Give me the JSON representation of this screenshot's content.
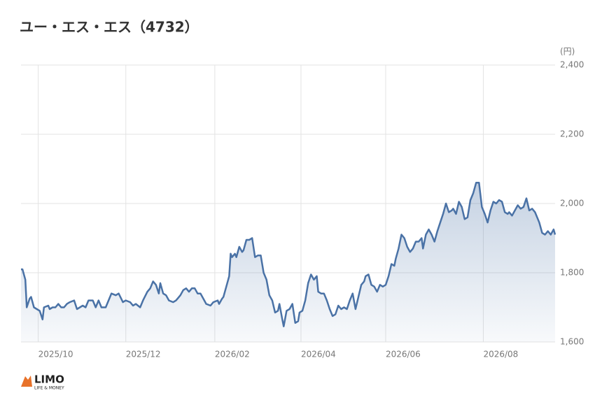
{
  "chart_data": {
    "type": "line",
    "title": "ユー・エス・エス（4732）",
    "unit_label": "(円)",
    "xlim": [
      0,
      372
    ],
    "xticks": [
      {
        "value": 12,
        "label": "2025/10"
      },
      {
        "value": 73,
        "label": "2025/12"
      },
      {
        "value": 135,
        "label": "2026/02"
      },
      {
        "value": 195,
        "label": "2026/04"
      },
      {
        "value": 254,
        "label": "2026/06"
      },
      {
        "value": 322,
        "label": "2026/08"
      }
    ],
    "ylim": [
      1600,
      2400
    ],
    "yticks": [
      {
        "value": 1600,
        "label": "1,600"
      },
      {
        "value": 1800,
        "label": "1,800"
      },
      {
        "value": 2000,
        "label": "2,000"
      },
      {
        "value": 2200,
        "label": "2,200"
      },
      {
        "value": 2400,
        "label": "2,400"
      }
    ],
    "grid": true,
    "x": [
      0,
      1,
      3,
      4,
      6,
      7,
      9,
      11,
      13,
      15,
      16,
      19,
      20,
      22,
      24,
      26,
      28,
      30,
      32,
      34,
      37,
      39,
      41,
      43,
      45,
      47,
      50,
      52,
      54,
      56,
      59,
      61,
      63,
      66,
      68,
      71,
      73,
      76,
      78,
      80,
      83,
      85,
      88,
      90,
      92,
      94,
      96,
      97,
      99,
      101,
      103,
      106,
      108,
      111,
      113,
      115,
      117,
      119,
      121,
      123,
      125,
      127,
      129,
      132,
      134,
      137,
      138,
      140,
      141,
      143,
      145,
      146,
      147,
      149,
      150,
      152,
      154,
      155,
      157,
      159,
      161,
      163,
      165,
      167,
      169,
      171,
      173,
      175,
      177,
      179,
      180,
      182,
      183,
      185,
      187,
      189,
      191,
      193,
      194,
      196,
      198,
      200,
      202,
      204,
      206,
      207,
      209,
      211,
      213,
      215,
      217,
      219,
      221,
      223,
      225,
      227,
      229,
      231,
      233,
      235,
      237,
      239,
      240,
      242,
      244,
      246,
      248,
      250,
      252,
      254,
      256,
      258,
      260,
      261,
      263,
      265,
      267,
      269,
      271,
      273,
      275,
      277,
      279,
      280,
      282,
      284,
      286,
      288,
      290,
      292,
      294,
      296,
      298,
      300,
      301,
      303,
      305,
      307,
      309,
      311,
      313,
      315,
      317,
      319,
      321,
      323,
      325,
      327,
      329,
      331,
      333,
      335,
      337,
      339,
      340,
      342,
      344,
      346,
      348,
      350,
      352,
      354,
      356,
      358,
      360,
      361,
      363,
      365,
      367,
      369,
      371,
      372
    ],
    "series": [
      {
        "name": "ユー・エス・エス",
        "color": "#4a72a6",
        "values": [
          1810,
          1810,
          1780,
          1700,
          1725,
          1730,
          1700,
          1695,
          1690,
          1665,
          1700,
          1705,
          1695,
          1700,
          1700,
          1710,
          1700,
          1700,
          1710,
          1715,
          1720,
          1695,
          1700,
          1705,
          1700,
          1720,
          1720,
          1700,
          1720,
          1700,
          1700,
          1720,
          1740,
          1735,
          1740,
          1715,
          1720,
          1715,
          1705,
          1710,
          1700,
          1720,
          1745,
          1755,
          1775,
          1765,
          1740,
          1770,
          1740,
          1735,
          1720,
          1715,
          1720,
          1735,
          1750,
          1755,
          1745,
          1755,
          1755,
          1740,
          1740,
          1725,
          1710,
          1705,
          1715,
          1720,
          1710,
          1725,
          1730,
          1760,
          1790,
          1855,
          1845,
          1855,
          1845,
          1875,
          1860,
          1865,
          1895,
          1895,
          1900,
          1845,
          1850,
          1850,
          1800,
          1780,
          1735,
          1720,
          1685,
          1690,
          1710,
          1665,
          1645,
          1690,
          1695,
          1710,
          1655,
          1660,
          1685,
          1690,
          1720,
          1770,
          1795,
          1780,
          1790,
          1745,
          1740,
          1740,
          1720,
          1695,
          1675,
          1680,
          1705,
          1695,
          1700,
          1695,
          1720,
          1740,
          1695,
          1730,
          1765,
          1775,
          1790,
          1795,
          1765,
          1760,
          1745,
          1765,
          1760,
          1765,
          1790,
          1825,
          1820,
          1840,
          1870,
          1910,
          1900,
          1875,
          1860,
          1870,
          1890,
          1890,
          1900,
          1870,
          1910,
          1925,
          1910,
          1890,
          1920,
          1945,
          1970,
          2000,
          1975,
          1980,
          1985,
          1970,
          2005,
          1990,
          1955,
          1960,
          2010,
          2030,
          2060,
          2060,
          1990,
          1970,
          1945,
          1980,
          2005,
          2000,
          2010,
          2005,
          1975,
          1970,
          1975,
          1965,
          1980,
          1995,
          1985,
          1990,
          2015,
          1980,
          1985,
          1975,
          1955,
          1945,
          1915,
          1910,
          1920,
          1910,
          1925,
          1910
        ]
      }
    ]
  },
  "logo": {
    "name": "LIMO",
    "tagline": "LIFE & MONEY"
  }
}
